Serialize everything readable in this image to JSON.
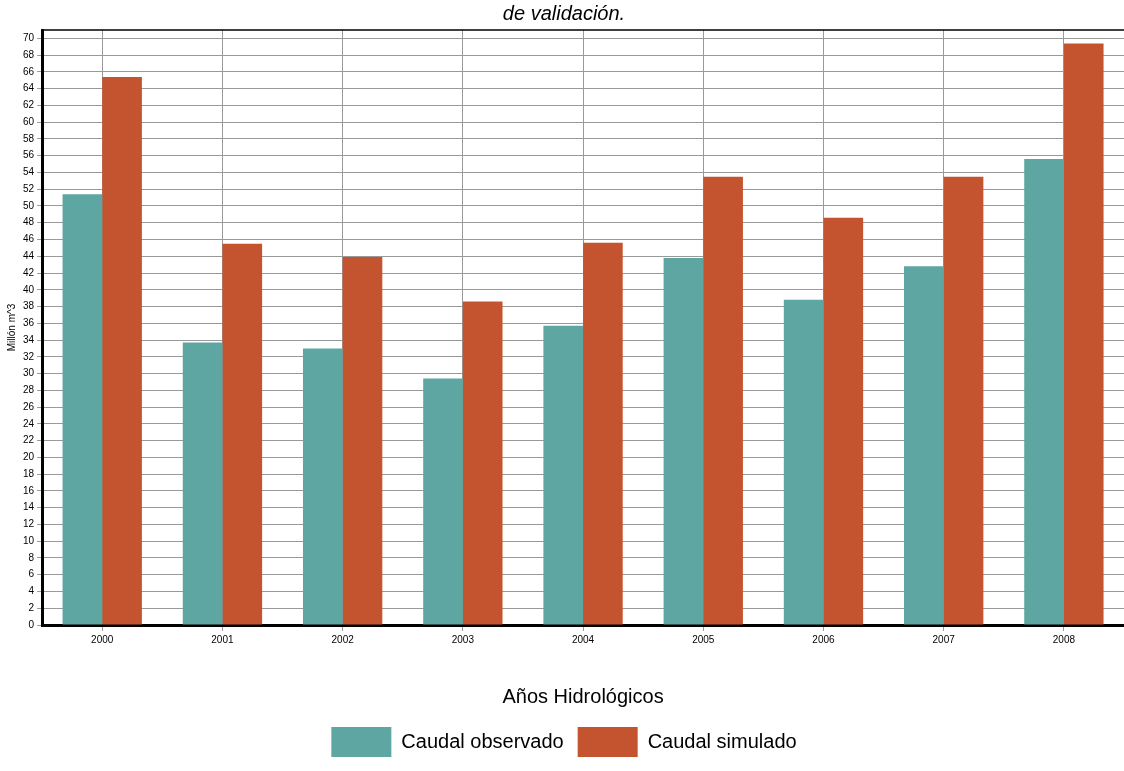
{
  "chart_data": {
    "type": "bar",
    "title": "de validación.",
    "xlabel": "Años Hidrológicos",
    "ylabel": "Millón m^3",
    "categories": [
      "2000",
      "2001",
      "2002",
      "2003",
      "2004",
      "2005",
      "2006",
      "2007",
      "2008"
    ],
    "series": [
      {
        "name": "Caudal observado",
        "color": "#5ea6a1",
        "values": [
          51.4,
          33.7,
          33.0,
          29.4,
          35.7,
          43.8,
          38.8,
          42.8,
          55.6
        ]
      },
      {
        "name": "Caudal simulado",
        "color": "#c45430",
        "values": [
          65.4,
          45.5,
          43.9,
          38.6,
          45.6,
          53.5,
          48.6,
          53.5,
          69.4
        ]
      }
    ],
    "ylim": [
      0,
      71
    ],
    "yticks": [
      0,
      2,
      4,
      6,
      8,
      10,
      12,
      14,
      16,
      18,
      20,
      22,
      24,
      26,
      28,
      30,
      32,
      34,
      36,
      38,
      40,
      42,
      44,
      46,
      48,
      50,
      52,
      54,
      56,
      58,
      60,
      62,
      64,
      66,
      68,
      70
    ],
    "grid": true,
    "legend": "bottom"
  }
}
